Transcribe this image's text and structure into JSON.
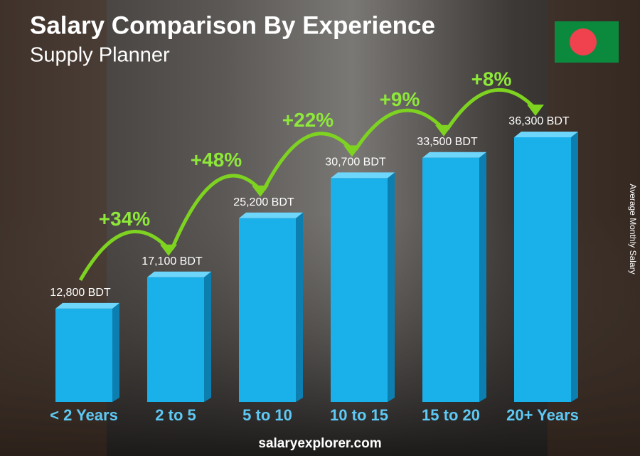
{
  "chart_data": {
    "type": "bar",
    "title": "Salary Comparison By Experience",
    "subtitle": "Supply Planner",
    "y_axis_label": "Average Monthly Salary",
    "categories": [
      "< 2 Years",
      "2 to 5",
      "5 to 10",
      "10 to 15",
      "15 to 20",
      "20+ Years"
    ],
    "values": [
      12800,
      17100,
      25200,
      30700,
      33500,
      36300
    ],
    "value_labels": [
      "12,800 BDT",
      "17,100 BDT",
      "25,200 BDT",
      "30,700 BDT",
      "33,500 BDT",
      "36,300 BDT"
    ],
    "annotations": [
      "+34%",
      "+48%",
      "+22%",
      "+9%",
      "+8%"
    ],
    "color": "#1ab0ea",
    "footer": "salaryexplorer.com"
  }
}
